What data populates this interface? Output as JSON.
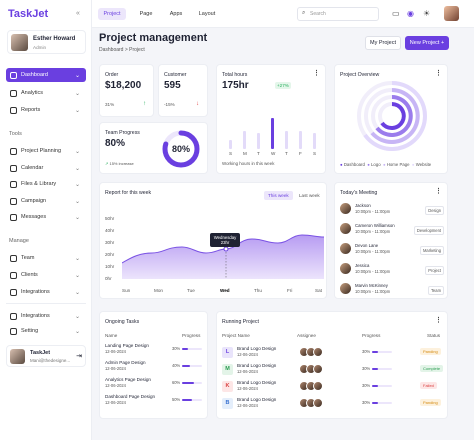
{
  "brand": "TaskJet",
  "profile": {
    "name": "Esther Howard",
    "role": "Admin"
  },
  "nav": {
    "main": [
      {
        "label": "Dashboard"
      },
      {
        "label": "Analytics"
      },
      {
        "label": "Reports"
      }
    ],
    "tools_title": "Tools",
    "tools": [
      {
        "label": "Project Planning"
      },
      {
        "label": "Calendar"
      },
      {
        "label": "Files & Library"
      },
      {
        "label": "Campaign"
      },
      {
        "label": "Messages"
      }
    ],
    "manage_title": "Manage",
    "manage": [
      {
        "label": "Team"
      },
      {
        "label": "Clients"
      },
      {
        "label": "Integrations"
      }
    ],
    "bottom": [
      {
        "label": "Integrations"
      },
      {
        "label": "Setting"
      }
    ]
  },
  "user": {
    "name": "TaskJet",
    "email": "Mani@thedesigne..."
  },
  "topbar": {
    "tabs": [
      "Project",
      "Page",
      "Apps",
      "Layout"
    ],
    "search_placeholder": "Search"
  },
  "page": {
    "title": "Project management",
    "breadcrumb": "Dashboard  >  Project",
    "btn_project": "My Project",
    "btn_new": "New Project +"
  },
  "stats": {
    "order": {
      "label": "Order",
      "value": "$18,200",
      "delta": "31%"
    },
    "customer": {
      "label": "Customer",
      "value": "595",
      "delta": "-15%"
    },
    "team": {
      "label": "Team Progress",
      "value": "80%",
      "sub": "15% increase",
      "ring": "80%",
      "ring_pct": 80
    }
  },
  "hours": {
    "title": "Total hours",
    "value": "175hr",
    "delta": "+27%",
    "caption": "Working hours in this week",
    "days": [
      "S",
      "M",
      "T",
      "W",
      "T",
      "F",
      "S"
    ],
    "bars": [
      0.25,
      0.5,
      0.45,
      0.85,
      0.5,
      0.5,
      0.45
    ]
  },
  "overview": {
    "title": "Project Overview",
    "legend": [
      "Dashboard",
      "Logo",
      "Home Page",
      "Website"
    ]
  },
  "report": {
    "title": "Report for this week",
    "toggles": [
      "This week",
      "Last week"
    ],
    "tooltip": {
      "day": "Wednesday",
      "value": "23hr"
    },
    "yticks": [
      "50hr",
      "40hr",
      "30hr",
      "20hr",
      "10hr",
      "0hr"
    ],
    "xdays": [
      "Sun",
      "Mon",
      "Tue",
      "Wed",
      "Thu",
      "Fri",
      "Sat"
    ]
  },
  "meeting": {
    "title": "Today's Meeting",
    "rows": [
      {
        "name": "Jackson",
        "time": "10:00pm - 11:00pm",
        "tag": "Design"
      },
      {
        "name": "Cameron Williamson",
        "time": "10:00pm - 11:00pm",
        "tag": "Development"
      },
      {
        "name": "Devon Lane",
        "time": "10:00pm - 11:00pm",
        "tag": "Marketing"
      },
      {
        "name": "Jessica",
        "time": "10:00pm - 11:00pm",
        "tag": "Project"
      },
      {
        "name": "Marvin McKinney",
        "time": "10:00pm - 11:00pm",
        "tag": "Team"
      }
    ]
  },
  "tasks": {
    "title": "Ongoing Tasks",
    "headers": [
      "Name",
      "Progress"
    ],
    "rows": [
      {
        "name": "Landing Page Design",
        "date": "12-06-2024",
        "pct": "30%"
      },
      {
        "name": "Admin Page Design",
        "date": "12-06-2024",
        "pct": "40%"
      },
      {
        "name": "Analytics Page Design",
        "date": "12-06-2024",
        "pct": "60%"
      },
      {
        "name": "Dashboard Page Design",
        "date": "12-06-2024",
        "pct": "50%"
      }
    ]
  },
  "running": {
    "title": "Running Project",
    "headers": [
      "Project Name",
      "Assignee",
      "Progress",
      "Status"
    ],
    "rows": [
      {
        "letter": "L",
        "name": "Brand Logo Design",
        "date": "12-06-2024",
        "pct": "30%",
        "status": "Panding"
      },
      {
        "letter": "M",
        "name": "Brand Logo Design",
        "date": "12-06-2024",
        "pct": "30%",
        "status": "Complete"
      },
      {
        "letter": "K",
        "name": "Brand Logo Design",
        "date": "12-06-2024",
        "pct": "30%",
        "status": "Failed"
      },
      {
        "letter": "B",
        "name": "Brand Logo Design",
        "date": "12-06-2024",
        "pct": "30%",
        "status": "Panding"
      }
    ]
  }
}
